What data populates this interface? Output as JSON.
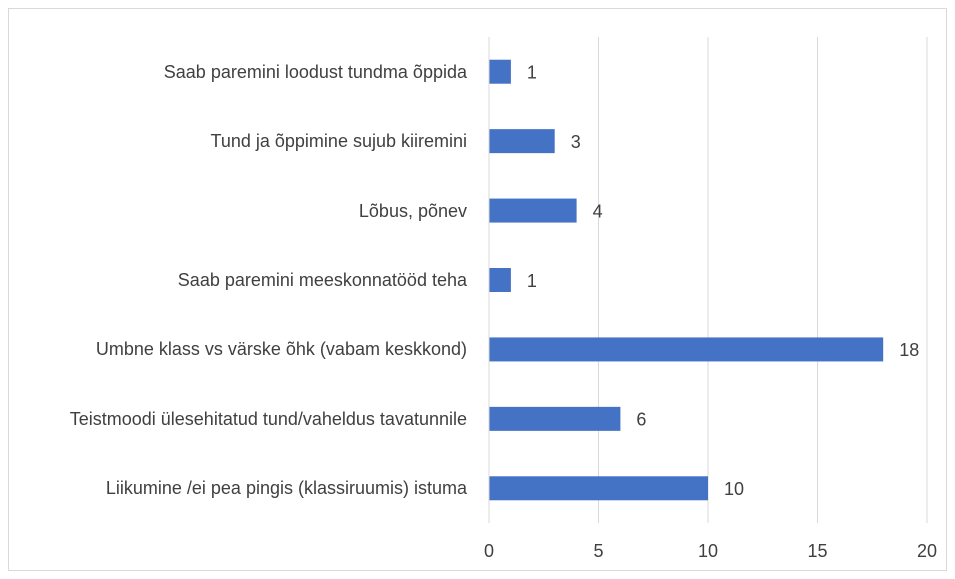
{
  "chart_data": {
    "type": "bar",
    "orientation": "horizontal",
    "categories": [
      "Saab paremini loodust tundma õppida",
      "Tund ja õppimine sujub kiiremini",
      "Lõbus, põnev",
      "Saab paremini meeskonnatööd teha",
      "Umbne klass vs värske õhk (vabam keskkond)",
      "Teistmoodi ülesehitatud tund/vaheldus tavatunnile",
      "Liikumine /ei pea pingis (klassiruumis) istuma"
    ],
    "values": [
      1,
      3,
      4,
      1,
      18,
      6,
      10
    ],
    "color": "#4472c4",
    "xlim": [
      0,
      20
    ],
    "xticks": [
      0,
      5,
      10,
      15,
      20
    ],
    "grid": true
  }
}
